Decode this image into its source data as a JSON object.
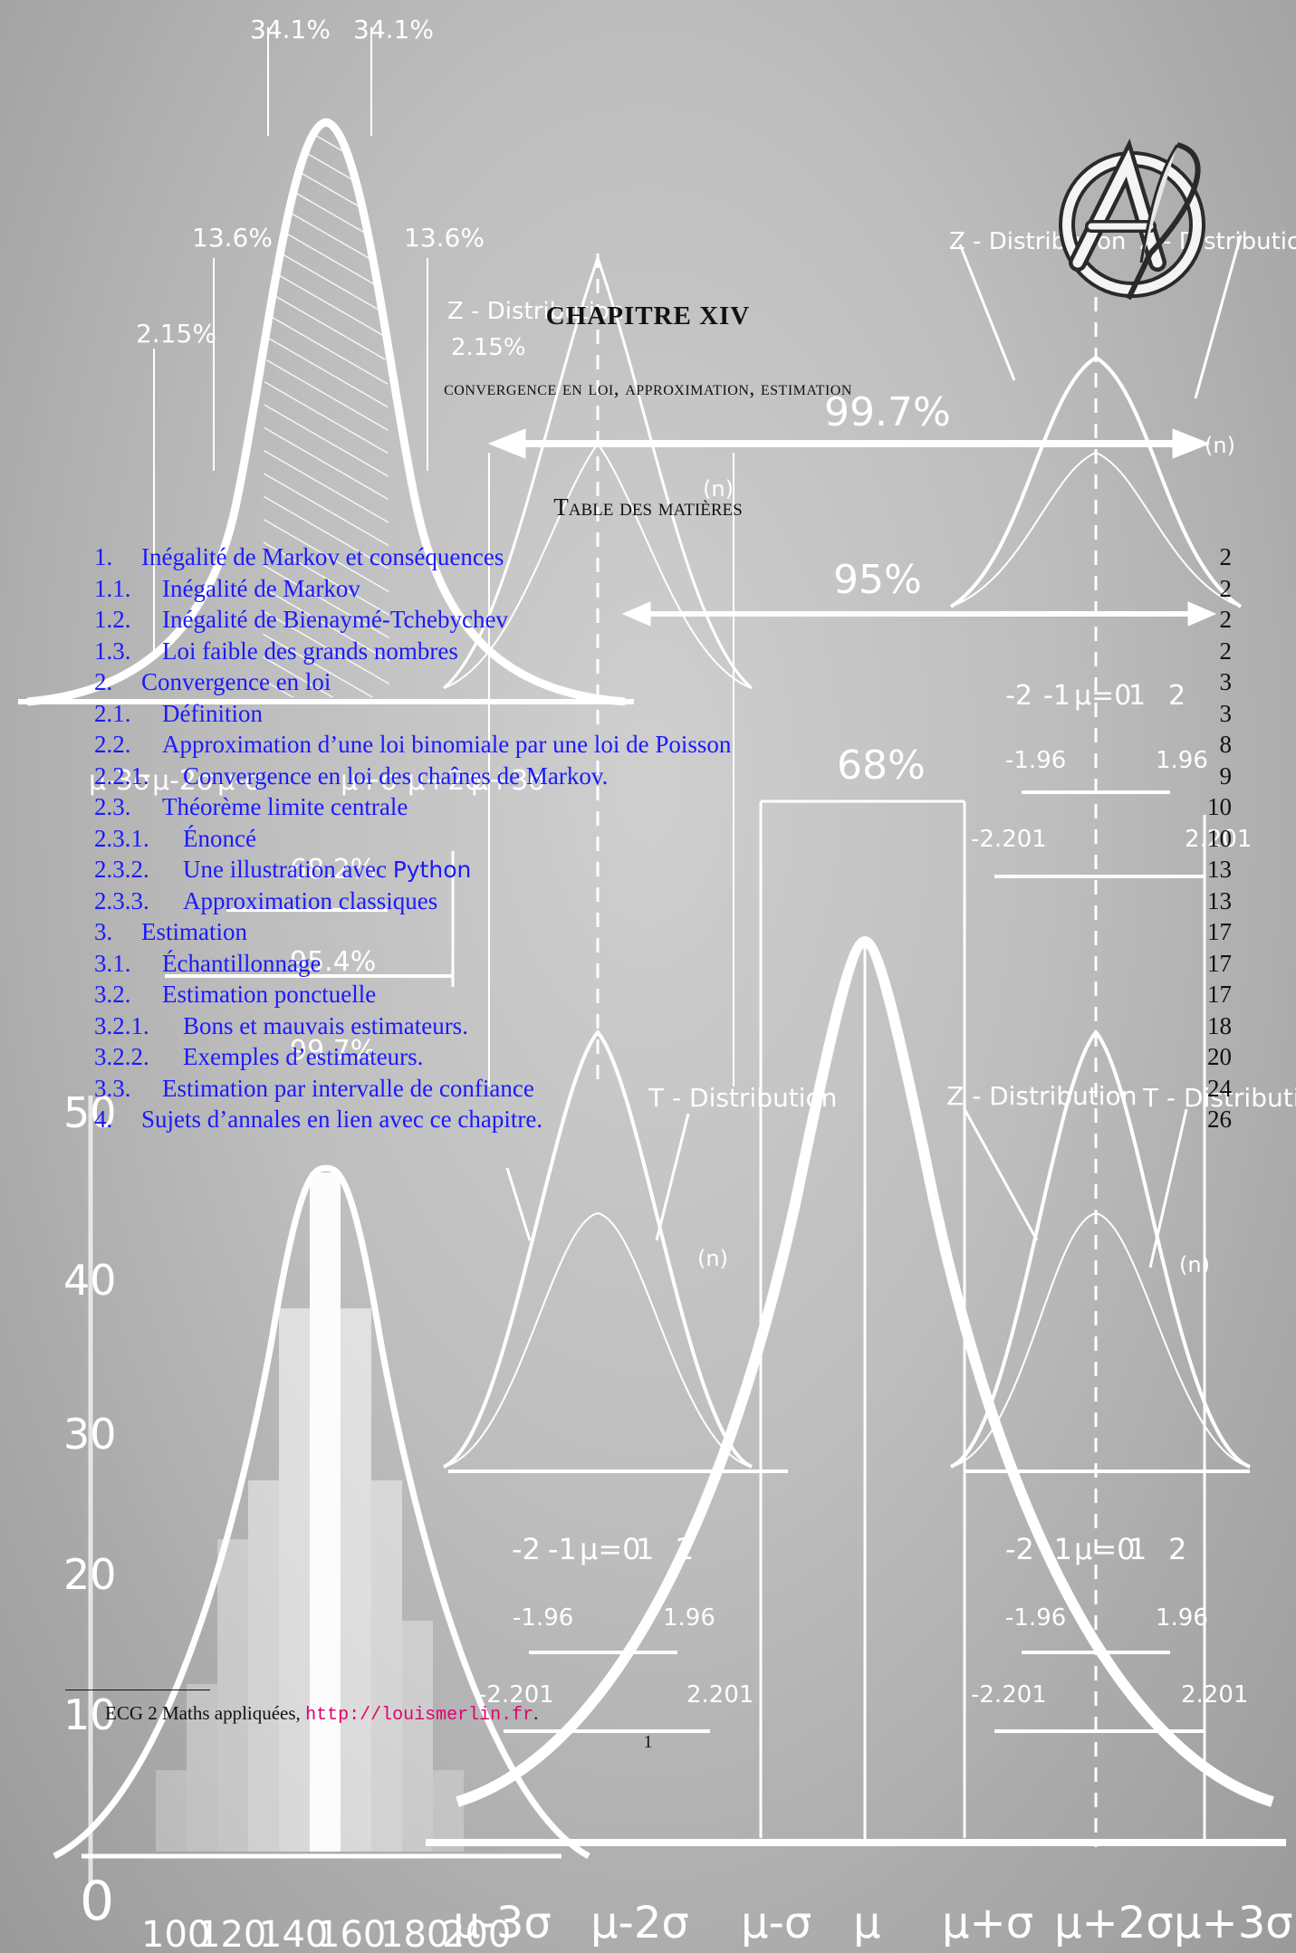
{
  "chapter": {
    "title": "CHAPITRE XIV",
    "subtitle": "Convergence en loi, approximation, estimation"
  },
  "toc": {
    "title": "Table des matières",
    "entries": [
      {
        "num": "1.",
        "title": "Inégalité de Markov et conséquences",
        "page": "2",
        "level": 1
      },
      {
        "num": "1.1.",
        "title": "Inégalité de Markov",
        "page": "2",
        "level": 2
      },
      {
        "num": "1.2.",
        "title": "Inégalité de Bienaymé-Tchebychev",
        "page": "2",
        "level": 2
      },
      {
        "num": "1.3.",
        "title": "Loi faible des grands nombres",
        "page": "2",
        "level": 2
      },
      {
        "num": "2.",
        "title": "Convergence en loi",
        "page": "3",
        "level": 1
      },
      {
        "num": "2.1.",
        "title": "Définition",
        "page": "3",
        "level": 2
      },
      {
        "num": "2.2.",
        "title": "Approximation d’une loi binomiale par une loi de Poisson",
        "page": "8",
        "level": 2
      },
      {
        "num": "2.2.1.",
        "title": "Convergence en loi des chaînes de Markov.",
        "page": "9",
        "level": 3
      },
      {
        "num": "2.3.",
        "title": "Théorème limite centrale",
        "page": "10",
        "level": 2
      },
      {
        "num": "2.3.1.",
        "title": "Énoncé",
        "page": "10",
        "level": 3
      },
      {
        "num": "2.3.2.",
        "title": "Une illustration avec",
        "extra": "Python",
        "page": "13",
        "level": 3
      },
      {
        "num": "2.3.3.",
        "title": "Approximation classiques",
        "page": "13",
        "level": 3
      },
      {
        "num": "3.",
        "title": "Estimation",
        "page": "17",
        "level": 1
      },
      {
        "num": "3.1.",
        "title": "Échantillonnage",
        "page": "17",
        "level": 2
      },
      {
        "num": "3.2.",
        "title": "Estimation ponctuelle",
        "page": "17",
        "level": 2
      },
      {
        "num": "3.2.1.",
        "title": "Bons et mauvais estimateurs.",
        "page": "18",
        "level": 3
      },
      {
        "num": "3.2.2.",
        "title": "Exemples d’estimateurs.",
        "page": "20",
        "level": 3
      },
      {
        "num": "3.3.",
        "title": "Estimation par intervalle de confiance",
        "page": "24",
        "level": 2
      },
      {
        "num": "4.",
        "title": "Sujets d’annales en lien avec ce chapitre.",
        "page": "26",
        "level": 1
      }
    ]
  },
  "footnote": {
    "text": "ECG 2 Maths appliquées,",
    "url": "http://louismerlin.fr",
    "trailing": "."
  },
  "page_number": "1",
  "background": {
    "percent_labels": [
      "34.1%",
      "34.1%",
      "13.6%",
      "13.6%",
      "2.15%",
      "2.15%",
      "99.7%",
      "95%",
      "68%",
      "68.2%",
      "95.4%",
      "99.7%"
    ],
    "z_distribution_label": "Z - Distribution",
    "t_distribution_label": "T - Distribution",
    "n_label": "(n)",
    "z_ticks": [
      "-2",
      "-1",
      "µ=0",
      "1",
      "2"
    ],
    "z_values": [
      "-1.96",
      "1.96"
    ],
    "t_values": [
      "-2.201",
      "2.201"
    ],
    "hist_y_ticks": [
      "0",
      "10",
      "20",
      "30",
      "40",
      "50"
    ],
    "hist_x_ticks": [
      "100",
      "120",
      "140",
      "160",
      "180",
      "200"
    ],
    "sigma_labels": [
      "µ-3σ",
      "µ-2σ",
      "µ-σ",
      "µ",
      "µ+σ",
      "µ+2σ",
      "µ+3σ"
    ],
    "mini_sigma_labels": [
      "µ-3σ",
      "µ-2σ",
      "µ-σ",
      "µ+σ",
      "µ+2σ",
      "µ+3σ"
    ],
    "colors": {
      "chalk": "#ffffff",
      "link": "#1a1aff",
      "url": "#e0006f"
    }
  }
}
